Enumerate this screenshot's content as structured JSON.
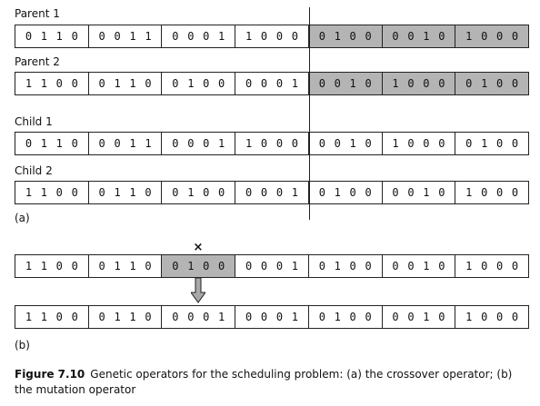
{
  "part_a": {
    "parent1": {
      "label": "Parent 1",
      "genes": [
        {
          "bits": [
            "0",
            "1",
            "1",
            "0"
          ],
          "shaded": false
        },
        {
          "bits": [
            "0",
            "0",
            "1",
            "1"
          ],
          "shaded": false
        },
        {
          "bits": [
            "0",
            "0",
            "0",
            "1"
          ],
          "shaded": false
        },
        {
          "bits": [
            "1",
            "0",
            "0",
            "0"
          ],
          "shaded": false
        },
        {
          "bits": [
            "0",
            "1",
            "0",
            "0"
          ],
          "shaded": true
        },
        {
          "bits": [
            "0",
            "0",
            "1",
            "0"
          ],
          "shaded": true
        },
        {
          "bits": [
            "1",
            "0",
            "0",
            "0"
          ],
          "shaded": true
        }
      ]
    },
    "parent2": {
      "label": "Parent 2",
      "genes": [
        {
          "bits": [
            "1",
            "1",
            "0",
            "0"
          ],
          "shaded": false
        },
        {
          "bits": [
            "0",
            "1",
            "1",
            "0"
          ],
          "shaded": false
        },
        {
          "bits": [
            "0",
            "1",
            "0",
            "0"
          ],
          "shaded": false
        },
        {
          "bits": [
            "0",
            "0",
            "0",
            "1"
          ],
          "shaded": false
        },
        {
          "bits": [
            "0",
            "0",
            "1",
            "0"
          ],
          "shaded": true
        },
        {
          "bits": [
            "1",
            "0",
            "0",
            "0"
          ],
          "shaded": true
        },
        {
          "bits": [
            "0",
            "1",
            "0",
            "0"
          ],
          "shaded": true
        }
      ]
    },
    "child1": {
      "label": "Child 1",
      "genes": [
        {
          "bits": [
            "0",
            "1",
            "1",
            "0"
          ],
          "shaded": false
        },
        {
          "bits": [
            "0",
            "0",
            "1",
            "1"
          ],
          "shaded": false
        },
        {
          "bits": [
            "0",
            "0",
            "0",
            "1"
          ],
          "shaded": false
        },
        {
          "bits": [
            "1",
            "0",
            "0",
            "0"
          ],
          "shaded": false
        },
        {
          "bits": [
            "0",
            "0",
            "1",
            "0"
          ],
          "shaded": false
        },
        {
          "bits": [
            "1",
            "0",
            "0",
            "0"
          ],
          "shaded": false
        },
        {
          "bits": [
            "0",
            "1",
            "0",
            "0"
          ],
          "shaded": false
        }
      ]
    },
    "child2": {
      "label": "Child 2",
      "genes": [
        {
          "bits": [
            "1",
            "1",
            "0",
            "0"
          ],
          "shaded": false
        },
        {
          "bits": [
            "0",
            "1",
            "1",
            "0"
          ],
          "shaded": false
        },
        {
          "bits": [
            "0",
            "1",
            "0",
            "0"
          ],
          "shaded": false
        },
        {
          "bits": [
            "0",
            "0",
            "0",
            "1"
          ],
          "shaded": false
        },
        {
          "bits": [
            "0",
            "1",
            "0",
            "0"
          ],
          "shaded": false
        },
        {
          "bits": [
            "0",
            "0",
            "1",
            "0"
          ],
          "shaded": false
        },
        {
          "bits": [
            "1",
            "0",
            "0",
            "0"
          ],
          "shaded": false
        }
      ]
    },
    "sublabel": "(a)"
  },
  "part_b": {
    "mutation_mark": "×",
    "before": {
      "genes": [
        {
          "bits": [
            "1",
            "1",
            "0",
            "0"
          ],
          "shaded": false
        },
        {
          "bits": [
            "0",
            "1",
            "1",
            "0"
          ],
          "shaded": false
        },
        {
          "bits": [
            "0",
            "1",
            "0",
            "0"
          ],
          "shaded": true
        },
        {
          "bits": [
            "0",
            "0",
            "0",
            "1"
          ],
          "shaded": false
        },
        {
          "bits": [
            "0",
            "1",
            "0",
            "0"
          ],
          "shaded": false
        },
        {
          "bits": [
            "0",
            "0",
            "1",
            "0"
          ],
          "shaded": false
        },
        {
          "bits": [
            "1",
            "0",
            "0",
            "0"
          ],
          "shaded": false
        }
      ]
    },
    "after": {
      "genes": [
        {
          "bits": [
            "1",
            "1",
            "0",
            "0"
          ],
          "shaded": false
        },
        {
          "bits": [
            "0",
            "1",
            "1",
            "0"
          ],
          "shaded": false
        },
        {
          "bits": [
            "0",
            "0",
            "0",
            "1"
          ],
          "shaded": false
        },
        {
          "bits": [
            "0",
            "0",
            "0",
            "1"
          ],
          "shaded": false
        },
        {
          "bits": [
            "0",
            "1",
            "0",
            "0"
          ],
          "shaded": false
        },
        {
          "bits": [
            "0",
            "0",
            "1",
            "0"
          ],
          "shaded": false
        },
        {
          "bits": [
            "1",
            "0",
            "0",
            "0"
          ],
          "shaded": false
        }
      ]
    },
    "sublabel": "(b)"
  },
  "caption": {
    "figure_label": "Figure 7.10",
    "text": "Genetic operators for the scheduling problem: (a) the crossover operator; (b) the mutation operator"
  },
  "colors": {
    "shade": "#b4b4b4",
    "line": "#222222",
    "arrow_fill": "#a8a8a8"
  }
}
